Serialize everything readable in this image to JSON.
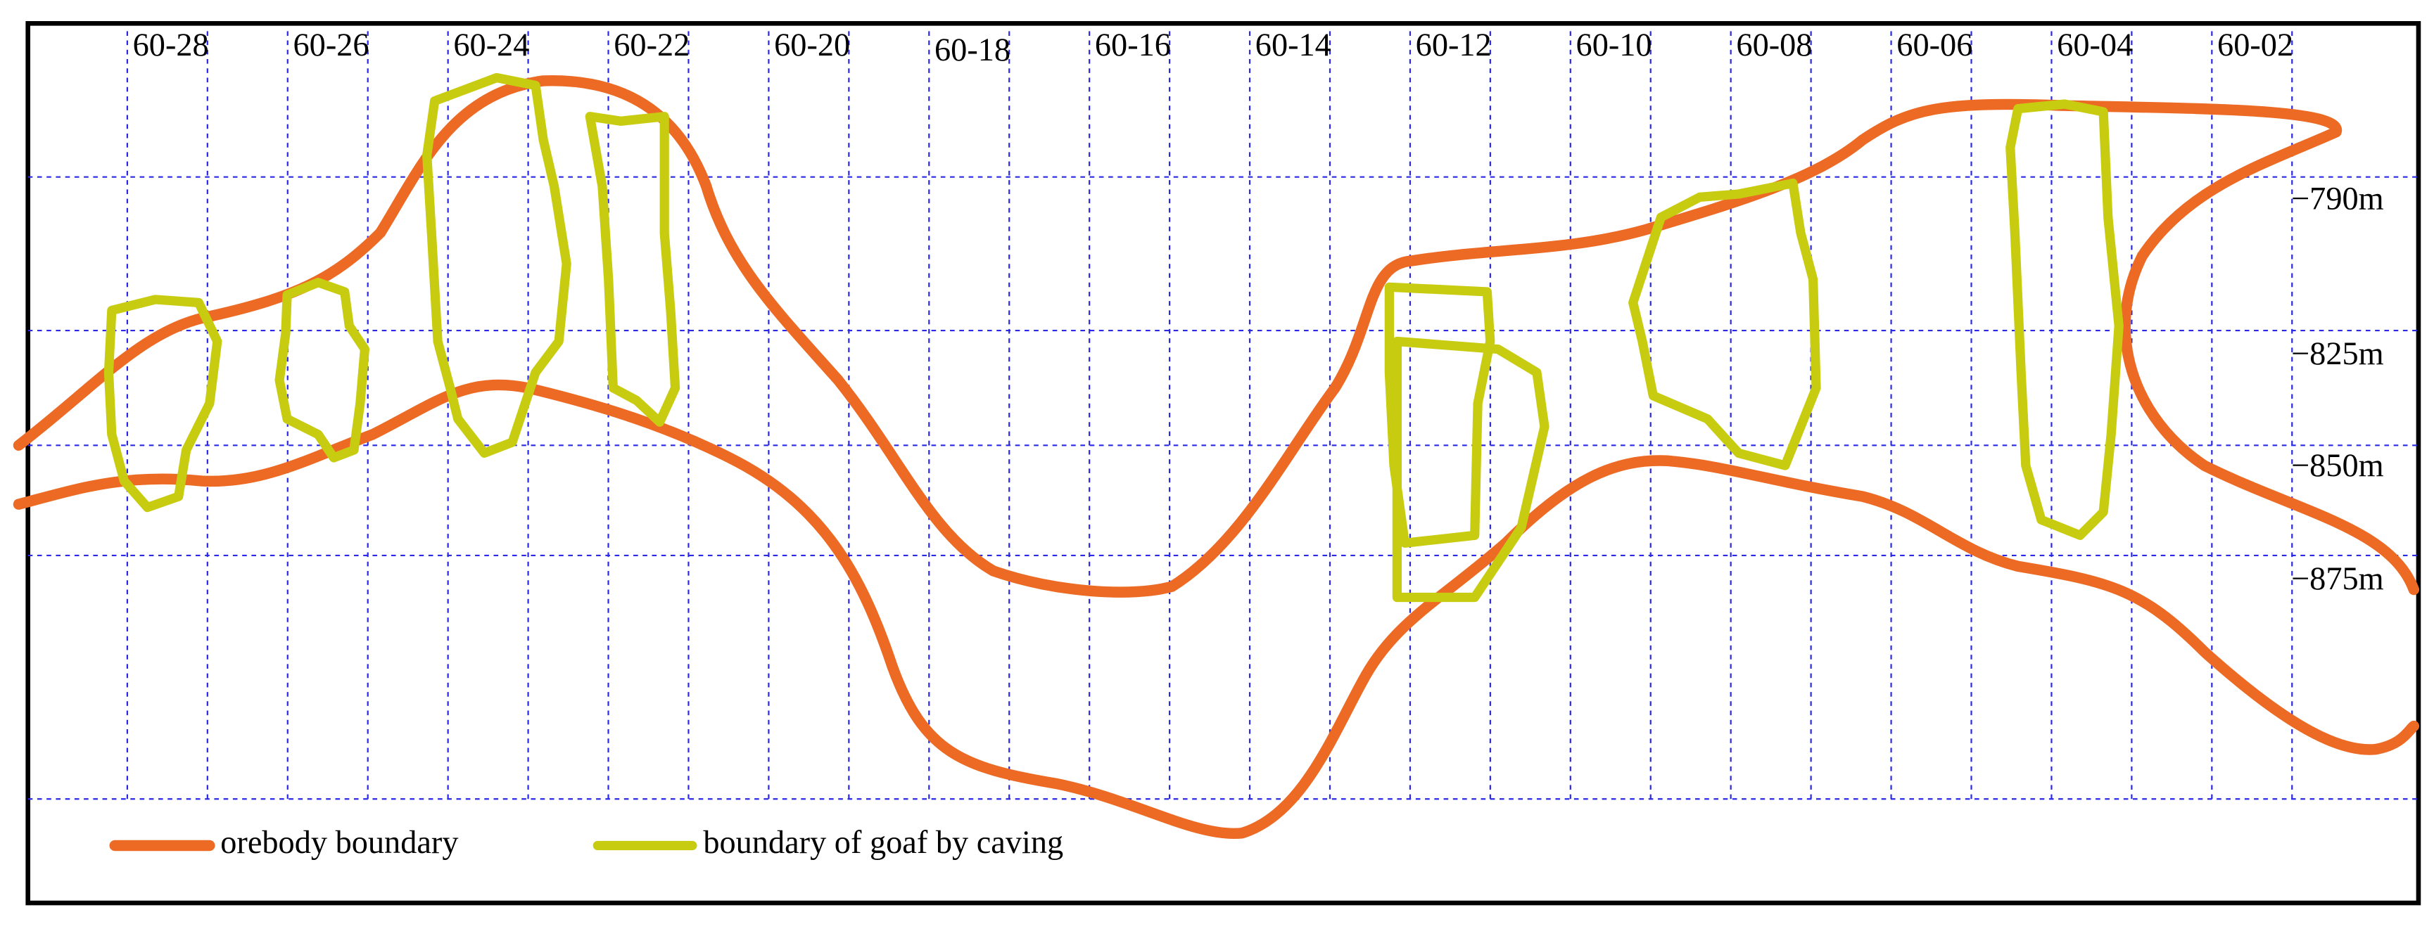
{
  "column_labels": [
    "60-28",
    "60-26",
    "60-24",
    "60-22",
    "60-20",
    "60-18",
    "60-16",
    "60-14",
    "60-12",
    "60-10",
    "60-08",
    "60-06",
    "60-04",
    "60-02"
  ],
  "level_labels": [
    "−790m",
    "−825m",
    "−850m",
    "−875m"
  ],
  "legend": [
    {
      "label": "orebody boundary"
    },
    {
      "label": "boundary of goaf by caving"
    }
  ]
}
